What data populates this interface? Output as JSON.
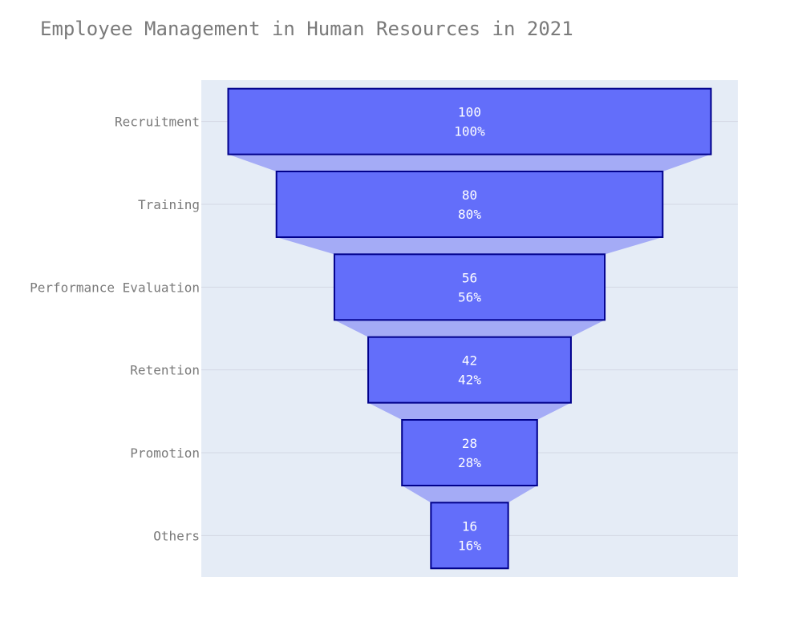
{
  "chart_data": {
    "type": "funnel",
    "title": "Employee Management in Human Resources in 2021",
    "categories": [
      "Recruitment",
      "Training",
      "Performance Evaluation",
      "Retention",
      "Promotion",
      "Others"
    ],
    "values": [
      100,
      80,
      56,
      42,
      28,
      16
    ],
    "percent_labels": [
      "100%",
      "80%",
      "56%",
      "42%",
      "28%",
      "16%"
    ],
    "max": 100,
    "colors": {
      "bar_fill": "#636efa",
      "bar_border": "#00008b",
      "connector": "#a4abf6",
      "plot_bg": "#e5ecf6",
      "grid": "#d4d8e4"
    }
  }
}
